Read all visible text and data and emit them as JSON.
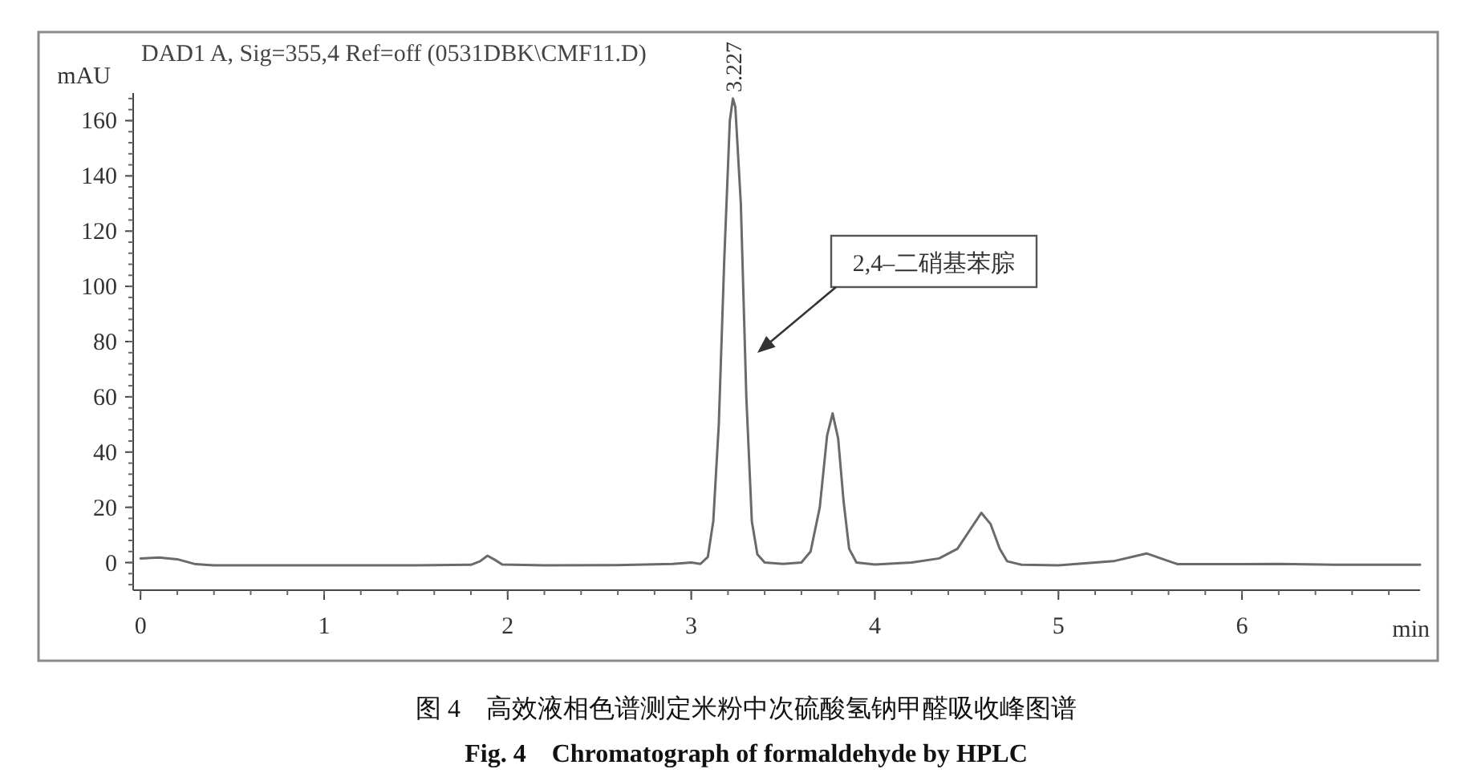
{
  "chart_data": {
    "type": "line",
    "title": "DAD1 A, Sig=355,4 Ref=off (0531DBK\\CMF11.D)",
    "ylabel": "mAU",
    "xlabel": "min",
    "xlim": [
      -0.04,
      6.97
    ],
    "xticks": [
      0,
      1,
      2,
      3,
      4,
      5,
      6
    ],
    "ylim": [
      -10,
      170
    ],
    "yticks": [
      0,
      20,
      40,
      60,
      80,
      100,
      120,
      140,
      160
    ],
    "grid": false,
    "marker": "none",
    "line_style": "solid",
    "series": [
      {
        "color": "#6a6a6a",
        "x": [
          0,
          0.1,
          0.2,
          0.3,
          0.4,
          1.0,
          1.5,
          1.8,
          1.85,
          1.89,
          1.93,
          1.97,
          2.2,
          2.6,
          2.9,
          3.0,
          3.05,
          3.09,
          3.12,
          3.15,
          3.18,
          3.21,
          3.227,
          3.24,
          3.27,
          3.3,
          3.33,
          3.36,
          3.4,
          3.5,
          3.6,
          3.65,
          3.7,
          3.74,
          3.77,
          3.8,
          3.83,
          3.86,
          3.9,
          4.0,
          4.2,
          4.35,
          4.45,
          4.52,
          4.58,
          4.63,
          4.68,
          4.72,
          4.8,
          5.0,
          5.3,
          5.48,
          5.58,
          5.65,
          6.0,
          6.2,
          6.5,
          6.97
        ],
        "values": [
          1.5,
          1.8,
          1.2,
          -0.6,
          -1,
          -1,
          -1,
          -0.8,
          0.5,
          2.5,
          1,
          -0.7,
          -1,
          -0.9,
          -0.5,
          0,
          -0.5,
          2,
          15,
          50,
          110,
          160,
          168,
          165,
          130,
          60,
          15,
          3,
          0,
          -0.5,
          0,
          4,
          20,
          46,
          54,
          45,
          22,
          5,
          0,
          -0.7,
          0,
          1.5,
          5,
          12,
          18,
          14,
          5,
          0.5,
          -0.8,
          -1,
          0.5,
          3.3,
          1,
          -0.6,
          -0.6,
          -0.5,
          -0.8,
          -0.8
        ]
      }
    ],
    "annotations": [
      {
        "text": "3.227",
        "x": 3.227,
        "y": 168
      },
      "2,4–二硝基苯腙",
      "图 4　高效液相色谱测定米粉中次硫酸氢钠甲醛吸收峰图谱",
      "Fig. 4　Chromatograph of formaldehyde by HPLC"
    ]
  }
}
